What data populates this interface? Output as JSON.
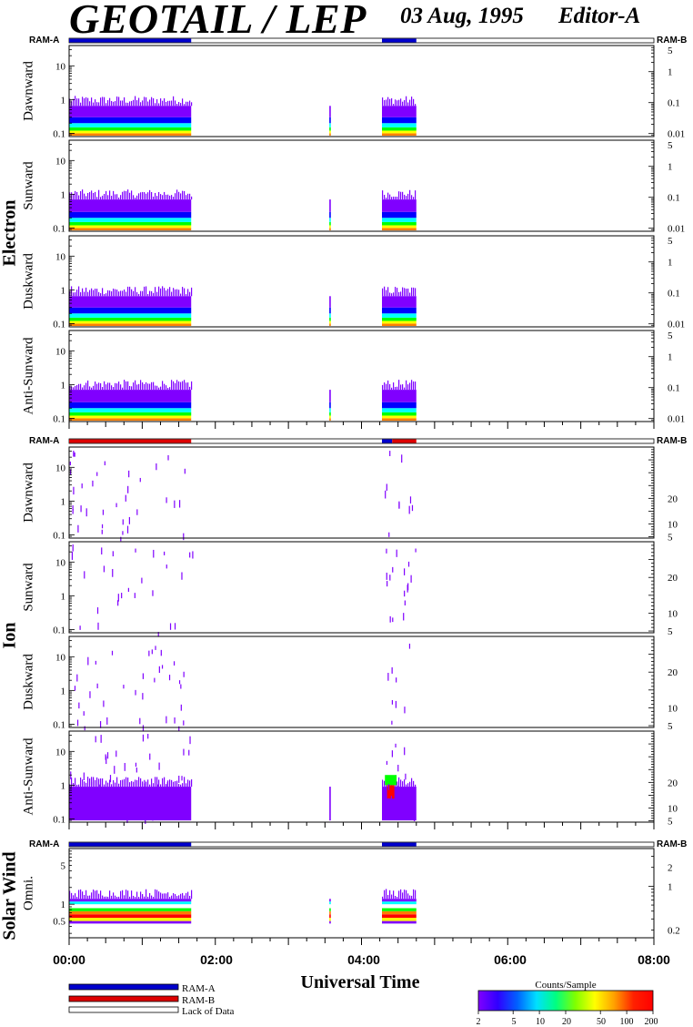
{
  "header": {
    "title": "GEOTAIL / LEP",
    "date": "03 Aug, 1995",
    "editor": "Editor-A"
  },
  "groups": [
    {
      "label": "Electron"
    },
    {
      "label": "Ion"
    },
    {
      "label": "Solar Wind"
    }
  ],
  "ram_labels": {
    "left": "RAM-A",
    "right": "RAM-B"
  },
  "legend": {
    "items": [
      {
        "label": "RAM-A",
        "color": "#0000cc"
      },
      {
        "label": "RAM-B",
        "color": "#dd0000"
      },
      {
        "label": "Lack of Data",
        "color": "#ffffff"
      }
    ]
  },
  "colorbar": {
    "title": "Counts/Sample",
    "ticks": [
      "2",
      "5",
      "10",
      "20",
      "50",
      "100",
      "200"
    ],
    "tick_values": [
      2,
      5,
      10,
      20,
      50,
      100,
      200
    ],
    "range": [
      2,
      200
    ],
    "colors": [
      "#8000ff",
      "#0000ff",
      "#00ffff",
      "#00ff00",
      "#ffff00",
      "#ff8000",
      "#ff0000"
    ]
  },
  "chart_data": {
    "type": "heatmap",
    "xlabel": "Universal Time",
    "xticks": [
      "00:00",
      "02:00",
      "04:00",
      "06:00",
      "08:00"
    ],
    "xlim_hours": [
      0,
      8
    ],
    "mode_bars": [
      {
        "group": "Electron",
        "segments": [
          {
            "start": 0.0,
            "end": 1.67,
            "mode": "RAM-A"
          },
          {
            "start": 4.28,
            "end": 4.75,
            "mode": "RAM-A"
          }
        ]
      },
      {
        "group": "Ion",
        "segments": [
          {
            "start": 0.0,
            "end": 1.67,
            "mode": "RAM-B"
          },
          {
            "start": 4.28,
            "end": 4.42,
            "mode": "RAM-A"
          },
          {
            "start": 4.42,
            "end": 4.75,
            "mode": "RAM-B"
          }
        ]
      },
      {
        "group": "Solar Wind",
        "segments": [
          {
            "start": 0.0,
            "end": 1.67,
            "mode": "RAM-A"
          },
          {
            "start": 4.28,
            "end": 4.75,
            "mode": "RAM-A"
          }
        ]
      }
    ],
    "panels": [
      {
        "group": "Electron",
        "label": "Dawnward",
        "yscale": "log",
        "ylim": [
          0.08,
          40
        ],
        "yticks": [
          "0.1",
          "1",
          "10"
        ],
        "yticks_vals": [
          0.1,
          1,
          10
        ],
        "right_ticks": [
          "0.01",
          "0.1",
          "1",
          "5"
        ],
        "right_vals": [
          0.01,
          0.1,
          1,
          5
        ],
        "right_range": [
          0.008,
          7
        ],
        "right_scale": "log",
        "data_intervals": [
          [
            0.0,
            1.67
          ],
          [
            3.56,
            3.58
          ],
          [
            4.28,
            4.75
          ]
        ],
        "band_top": 0.65,
        "band_profile": "electron"
      },
      {
        "group": "Electron",
        "label": "Sunward",
        "yscale": "log",
        "ylim": [
          0.08,
          40
        ],
        "yticks": [
          "0.1",
          "1",
          "10"
        ],
        "yticks_vals": [
          0.1,
          1,
          10
        ],
        "right_ticks": [
          "0.01",
          "0.1",
          "1",
          "5"
        ],
        "right_vals": [
          0.01,
          0.1,
          1,
          5
        ],
        "right_range": [
          0.008,
          7
        ],
        "right_scale": "log",
        "data_intervals": [
          [
            0.0,
            1.67
          ],
          [
            3.56,
            3.58
          ],
          [
            4.28,
            4.75
          ]
        ],
        "band_top": 0.7,
        "band_profile": "electron"
      },
      {
        "group": "Electron",
        "label": "Duskward",
        "yscale": "log",
        "ylim": [
          0.08,
          40
        ],
        "yticks": [
          "0.1",
          "1",
          "10"
        ],
        "yticks_vals": [
          0.1,
          1,
          10
        ],
        "right_ticks": [
          "0.01",
          "0.1",
          "1",
          "5"
        ],
        "right_vals": [
          0.01,
          0.1,
          1,
          5
        ],
        "right_range": [
          0.008,
          7
        ],
        "right_scale": "log",
        "data_intervals": [
          [
            0.0,
            1.67
          ],
          [
            3.56,
            3.58
          ],
          [
            4.28,
            4.75
          ]
        ],
        "band_top": 0.65,
        "band_profile": "electron"
      },
      {
        "group": "Electron",
        "label": "Anti-Sunward",
        "yscale": "log",
        "ylim": [
          0.08,
          40
        ],
        "yticks": [
          "0.1",
          "1",
          "10"
        ],
        "yticks_vals": [
          0.1,
          1,
          10
        ],
        "right_ticks": [
          "0.01",
          "0.1",
          "1",
          "5"
        ],
        "right_vals": [
          0.01,
          0.1,
          1,
          5
        ],
        "right_range": [
          0.008,
          7
        ],
        "right_scale": "log",
        "data_intervals": [
          [
            0.0,
            1.67
          ],
          [
            3.56,
            3.58
          ],
          [
            4.28,
            4.75
          ]
        ],
        "band_top": 0.7,
        "band_profile": "electron"
      },
      {
        "group": "Ion",
        "label": "Dawnward",
        "yscale": "log",
        "ylim": [
          0.08,
          40
        ],
        "yticks": [
          "0.1",
          "1",
          "10"
        ],
        "yticks_vals": [
          0.1,
          1,
          10
        ],
        "right_ticks": [
          "5",
          "10",
          "20"
        ],
        "right_vals": [
          5,
          10,
          20
        ],
        "right_range": [
          4.5,
          40
        ],
        "right_scale": "linear",
        "data_intervals": [],
        "band_top": 0,
        "band_profile": "ion_sparse"
      },
      {
        "group": "Ion",
        "label": "Sunward",
        "yscale": "log",
        "ylim": [
          0.08,
          40
        ],
        "yticks": [
          "0.1",
          "1",
          "10"
        ],
        "yticks_vals": [
          0.1,
          1,
          10
        ],
        "right_ticks": [
          "5",
          "10",
          "20"
        ],
        "right_vals": [
          5,
          10,
          20
        ],
        "right_range": [
          4.5,
          30
        ],
        "right_scale": "linear",
        "data_intervals": [],
        "band_top": 0,
        "band_profile": "ion_sparse"
      },
      {
        "group": "Ion",
        "label": "Duskward",
        "yscale": "log",
        "ylim": [
          0.08,
          40
        ],
        "yticks": [
          "0.1",
          "1",
          "10"
        ],
        "yticks_vals": [
          0.1,
          1,
          10
        ],
        "right_ticks": [
          "5",
          "10",
          "20"
        ],
        "right_vals": [
          5,
          10,
          20
        ],
        "right_range": [
          4.5,
          30
        ],
        "right_scale": "linear",
        "data_intervals": [],
        "band_top": 0,
        "band_profile": "ion_sparse"
      },
      {
        "group": "Ion",
        "label": "Anti-Sunward",
        "yscale": "log",
        "ylim": [
          0.08,
          40
        ],
        "yticks": [
          "0.1",
          "1",
          "10"
        ],
        "yticks_vals": [
          0.1,
          1,
          10
        ],
        "right_ticks": [
          "5",
          "10",
          "20"
        ],
        "right_vals": [
          5,
          10,
          20
        ],
        "right_range": [
          4.5,
          40
        ],
        "right_scale": "linear",
        "data_intervals": [
          [
            0.0,
            1.67
          ],
          [
            3.56,
            3.58
          ],
          [
            4.28,
            4.75
          ]
        ],
        "band_top": 0.9,
        "band_profile": "ion_band"
      },
      {
        "group": "Solar Wind",
        "label": "Omni.",
        "yscale": "log",
        "ylim": [
          0.25,
          10
        ],
        "yticks": [
          "0.5",
          "1",
          "5"
        ],
        "yticks_vals": [
          0.5,
          1,
          5
        ],
        "right_ticks": [
          "0.2",
          "1",
          "2"
        ],
        "right_vals": [
          0.2,
          1,
          2
        ],
        "right_range": [
          0.15,
          4
        ],
        "right_scale": "log",
        "data_intervals": [
          [
            0.0,
            1.67
          ],
          [
            3.56,
            3.58
          ],
          [
            4.28,
            4.75
          ]
        ],
        "band_top": 1.25,
        "band_profile": "solarwind"
      }
    ]
  }
}
